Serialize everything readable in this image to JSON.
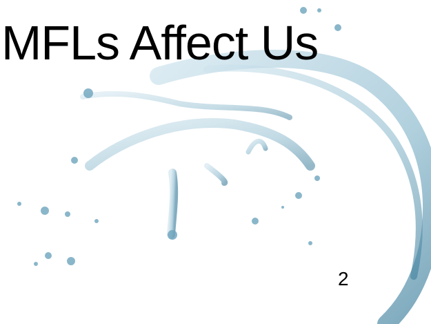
{
  "slide": {
    "title": "MFLs Affect Us",
    "page_number": "2"
  }
}
